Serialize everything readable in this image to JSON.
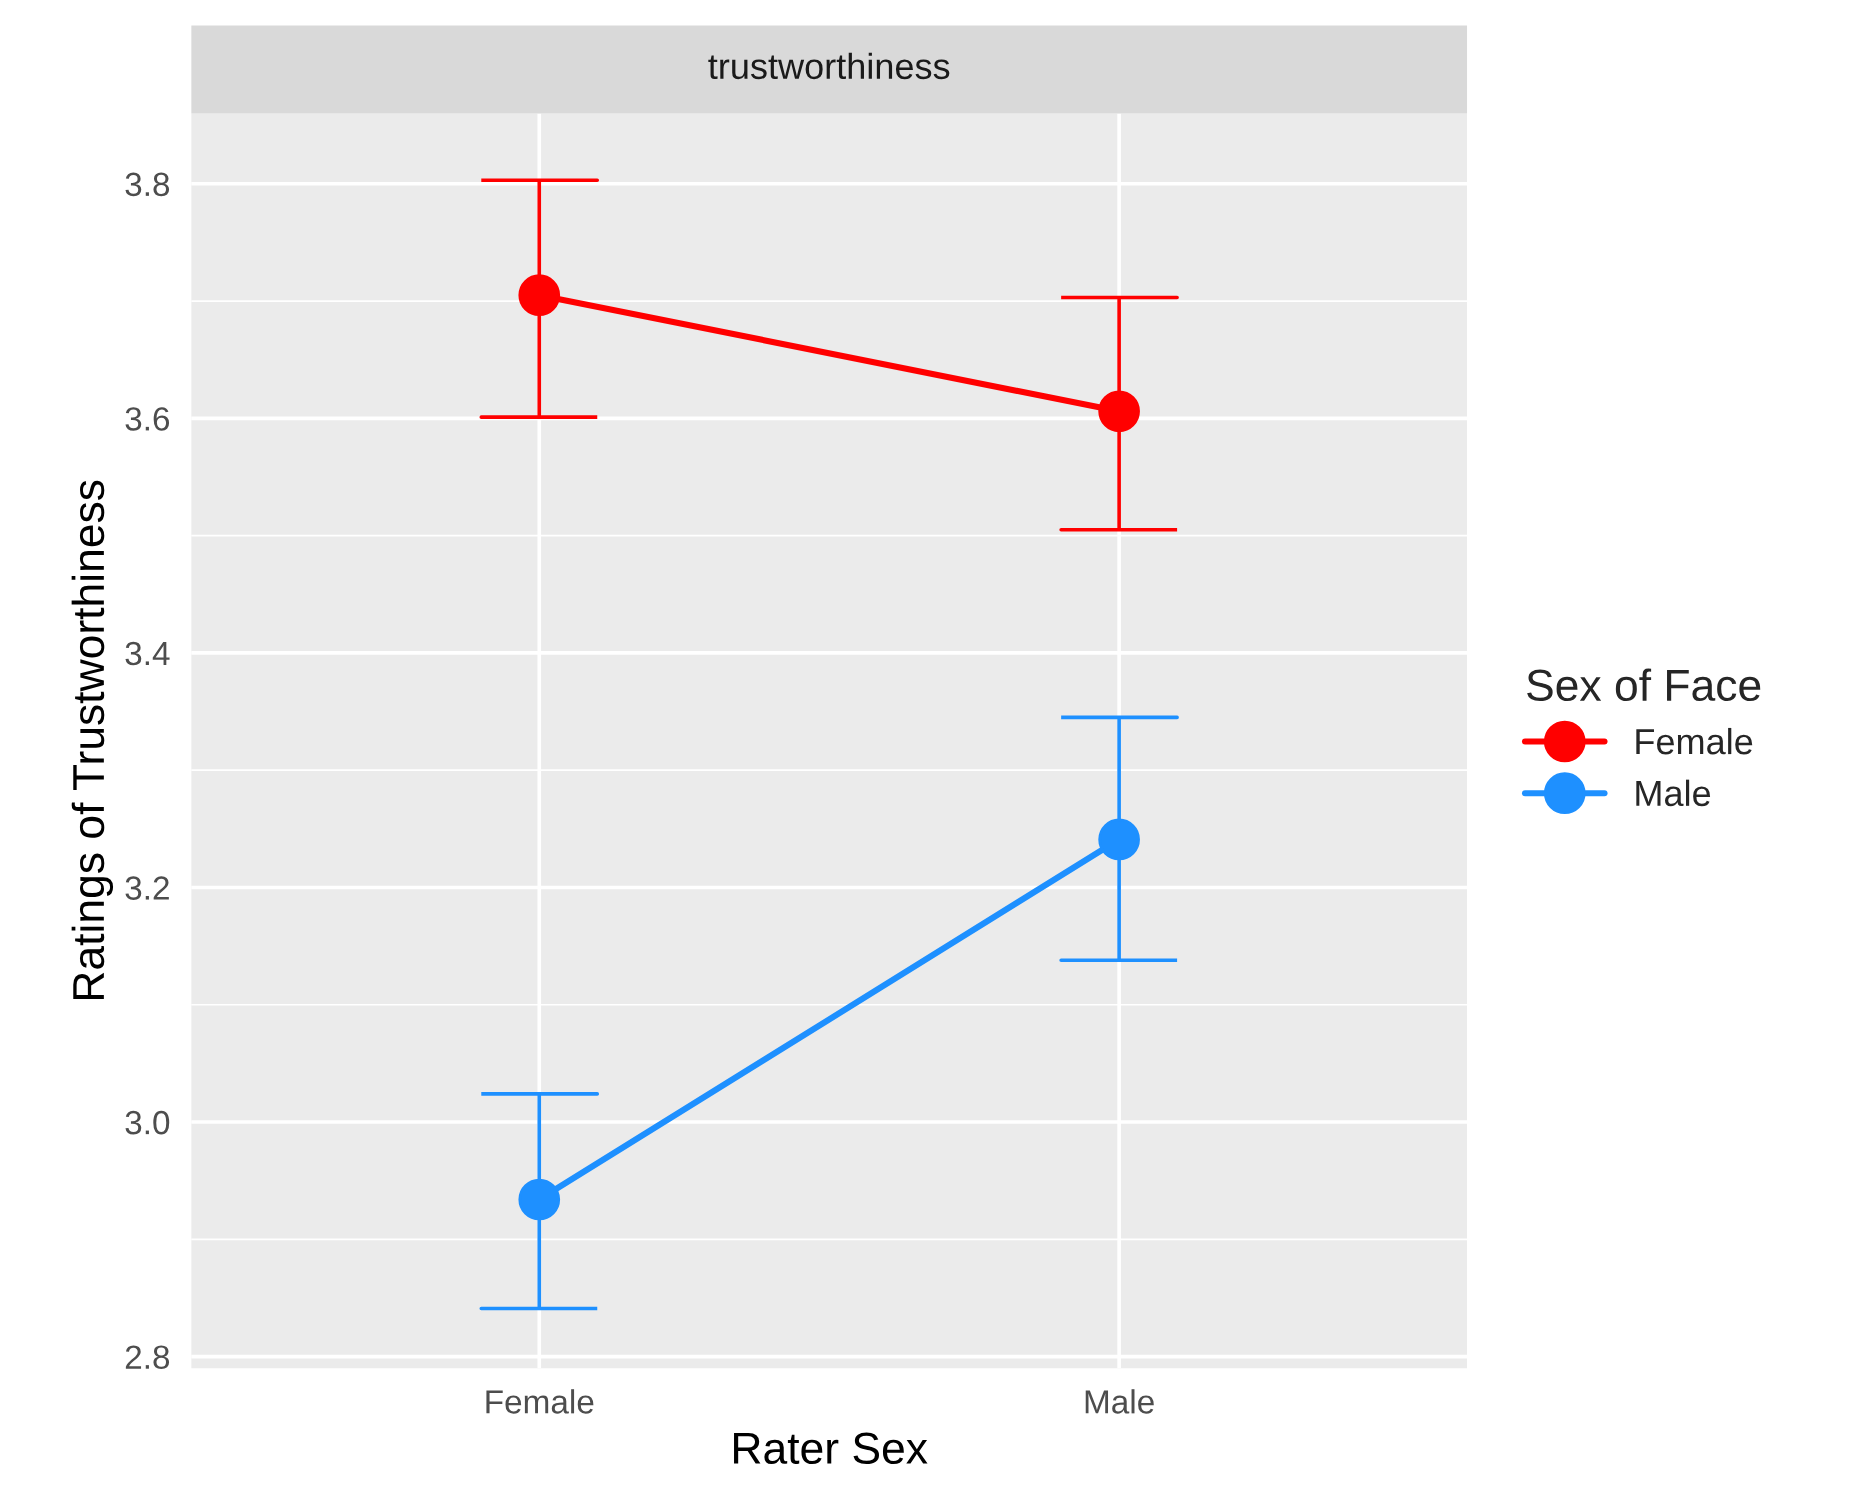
{
  "chart_data": {
    "type": "line",
    "title": "trustworthiness",
    "xlabel": "Rater Sex",
    "ylabel": "Ratings of Trustworthiness",
    "legend_title": "Sex of Face",
    "categories": [
      "Female",
      "Male"
    ],
    "series": [
      {
        "name": "Female",
        "color": "#ff0000",
        "values": [
          3.705,
          3.606
        ],
        "errors": [
          [
            3.601,
            3.803
          ],
          [
            3.505,
            3.703
          ]
        ]
      },
      {
        "name": "Male",
        "color": "#1e90ff",
        "values": [
          2.934,
          3.241
        ],
        "errors": [
          [
            2.841,
            3.024
          ],
          [
            3.138,
            3.345
          ]
        ]
      }
    ],
    "ylim": [
      2.79,
      3.86
    ],
    "yticks": [
      2.8,
      {
        "value": 3.0,
        "label": "3.0"
      },
      3.2,
      3.4,
      3.6,
      3.8
    ],
    "grid": true,
    "legend": "right",
    "marker": "circle",
    "line_style": "solid"
  }
}
